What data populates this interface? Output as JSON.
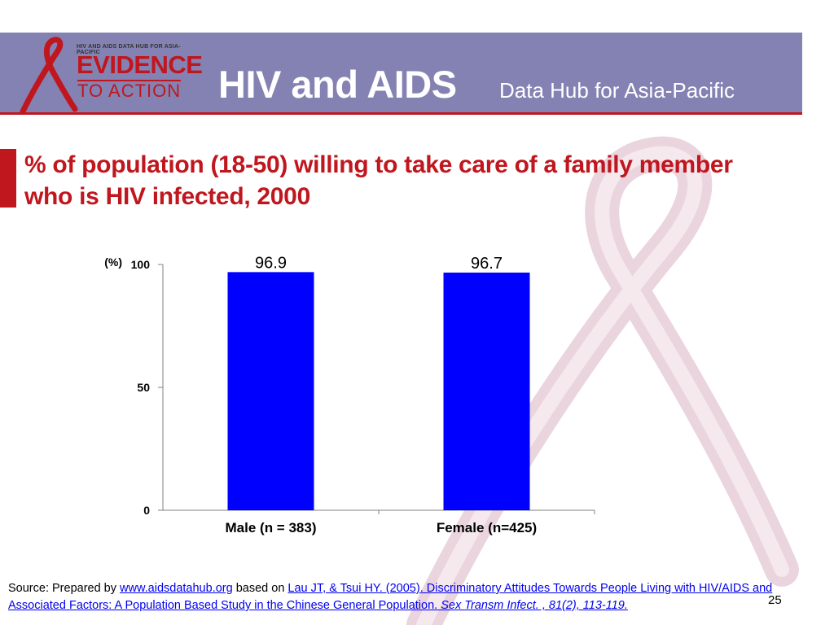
{
  "header": {
    "logo_top": "HIV AND AIDS DATA HUB FOR ASIA-PACIFIC",
    "logo_evidence": "EVIDENCE",
    "logo_action": "TO ACTION",
    "main": "HIV and AIDS",
    "sub": "Data Hub for Asia-Pacific"
  },
  "title": "% of population (18-50) willing to take care of a family member who is HIV infected, 2000",
  "chart_data": {
    "type": "bar",
    "categories": [
      "Male (n = 383)",
      "Female (n=425)"
    ],
    "values": [
      96.9,
      96.7
    ],
    "value_labels": [
      "96.9",
      "96.7"
    ],
    "ylabel": "(%)",
    "ylim": [
      0,
      100
    ],
    "yticks": [
      0,
      50,
      100
    ],
    "bar_color": "#0000ff",
    "grid": false
  },
  "source": {
    "prefix": "Source: Prepared by ",
    "link1": "www.aidsdatahub.org",
    "middle": " based on ",
    "link2": "Lau JT, & Tsui HY. (2005). Discriminatory Attitudes Towards People Living with HIV/AIDS and Associated Factors: A Population Based Study in the Chinese General Population.",
    "journal": "Sex Transm Infect. , 81(2), 113-119.",
    "page": "25"
  },
  "colors": {
    "header_band": "#8482b2",
    "accent_red": "#c0161e",
    "ribbon": "#e9d2dc"
  }
}
